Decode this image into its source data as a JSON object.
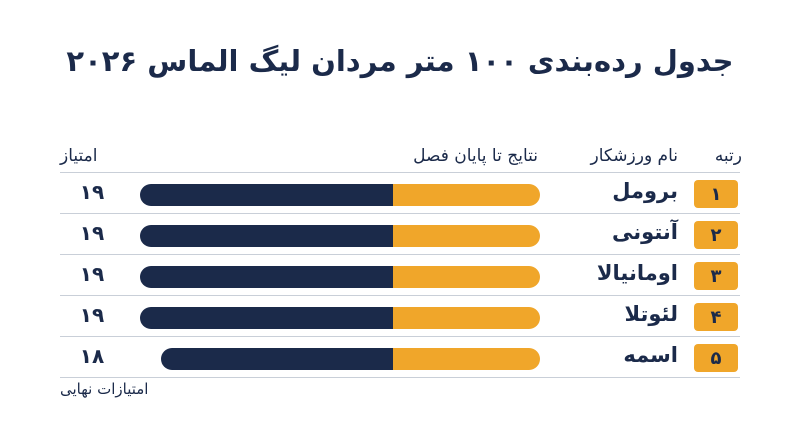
{
  "chart_data": {
    "type": "bar",
    "title": "جدول رده‌بندی ۱۰۰ متر مردان لیگ الماس ۲۰۲۶",
    "headers": {
      "rank": "رتبه",
      "athlete": "نام ورزشکار",
      "results": "نتایج تا پایان فصل",
      "points": "امتیاز"
    },
    "note": "امتیازات نهایی",
    "categories": [
      "برومل",
      "آنتونی",
      "اومانیالا",
      "لئوتلا",
      "اسمه"
    ],
    "ranks": [
      "۱",
      "۲",
      "۳",
      "۴",
      "۵"
    ],
    "points_labels": [
      "۱۹",
      "۱۹",
      "۱۹",
      "۱۹",
      "۱۸"
    ],
    "series": [
      {
        "values": [
          12,
          12,
          12,
          12,
          11
        ]
      },
      {
        "values": [
          7,
          7,
          7,
          7,
          7
        ]
      }
    ],
    "totals": [
      19,
      19,
      19,
      19,
      18
    ],
    "xlim": [
      0,
      19
    ],
    "colors": {
      "dark": "#1b2a4a",
      "accent": "#f0a62a"
    }
  }
}
